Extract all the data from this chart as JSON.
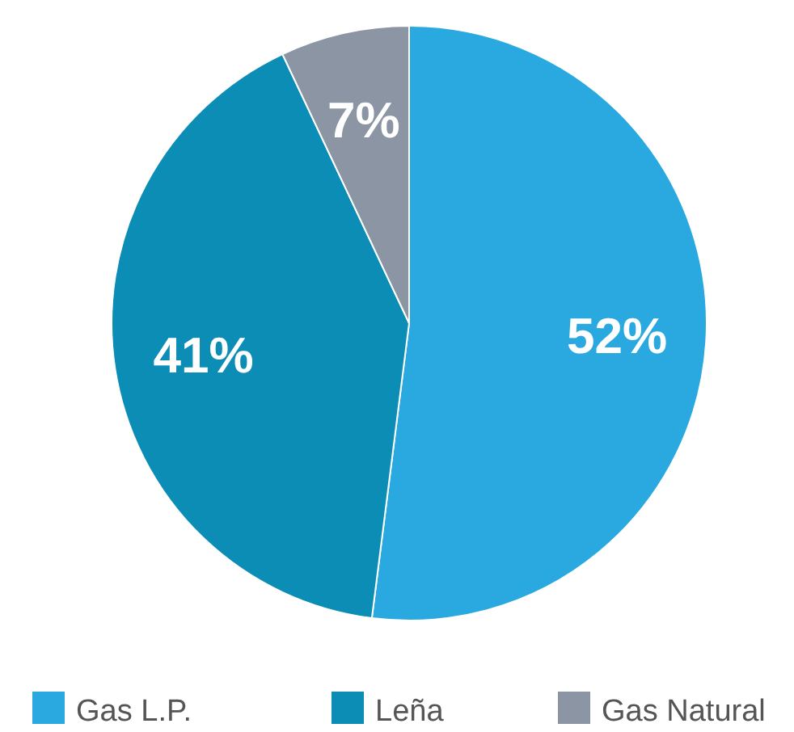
{
  "chart_data": {
    "type": "pie",
    "categories": [
      "Gas L.P.",
      "Leña",
      "Gas Natural"
    ],
    "values": [
      52,
      41,
      7
    ],
    "value_labels": [
      "52%",
      "41%",
      "7%"
    ],
    "colors": [
      "#29a9df",
      "#0b8db5",
      "#8b95a3"
    ],
    "legend": "bottom"
  }
}
